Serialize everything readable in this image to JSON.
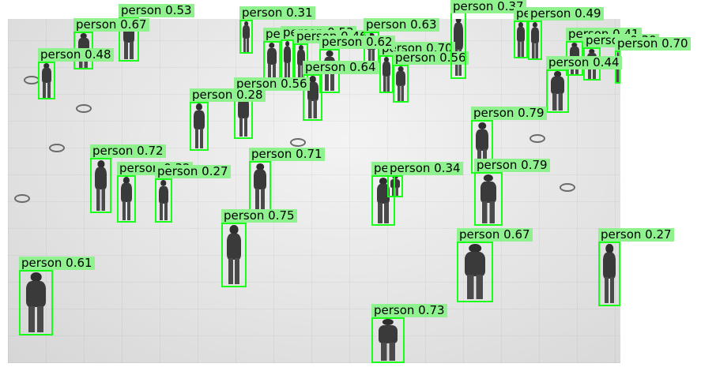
{
  "image": {
    "description_label": "crowd-photo",
    "box_color": "#1aff1a",
    "label_bg": "#8ff28f"
  },
  "detections": [
    {
      "label": "person 0.53"
    },
    {
      "label": "person 0.67"
    },
    {
      "label": "person 0.48"
    },
    {
      "label": "person 0.31"
    },
    {
      "label": "person 0.55"
    },
    {
      "label": "person 0.53"
    },
    {
      "label": "person 0.46"
    },
    {
      "label": "person 0.63"
    },
    {
      "label": "person 0.70"
    },
    {
      "label": "person 0.56"
    },
    {
      "label": "person 0.62"
    },
    {
      "label": "person 0.64"
    },
    {
      "label": "person 0.56"
    },
    {
      "label": "person 0.28"
    },
    {
      "label": "person 0.37"
    },
    {
      "label": "person 0.38"
    },
    {
      "label": "person 0.49"
    },
    {
      "label": "person 0.41"
    },
    {
      "label": "person 0.30"
    },
    {
      "label": "person 0.70"
    },
    {
      "label": "person 0.44"
    },
    {
      "label": "person 0.79"
    },
    {
      "label": "person 0.72"
    },
    {
      "label": "person 0.71"
    },
    {
      "label": "person 0.32"
    },
    {
      "label": "person 0.27"
    },
    {
      "label": "person 0.60"
    },
    {
      "label": "person 0.34"
    },
    {
      "label": "person 0.79"
    },
    {
      "label": "person 0.75"
    },
    {
      "label": "person 0.67"
    },
    {
      "label": "person 0.27"
    },
    {
      "label": "person 0.61"
    },
    {
      "label": "person 0.73"
    }
  ]
}
